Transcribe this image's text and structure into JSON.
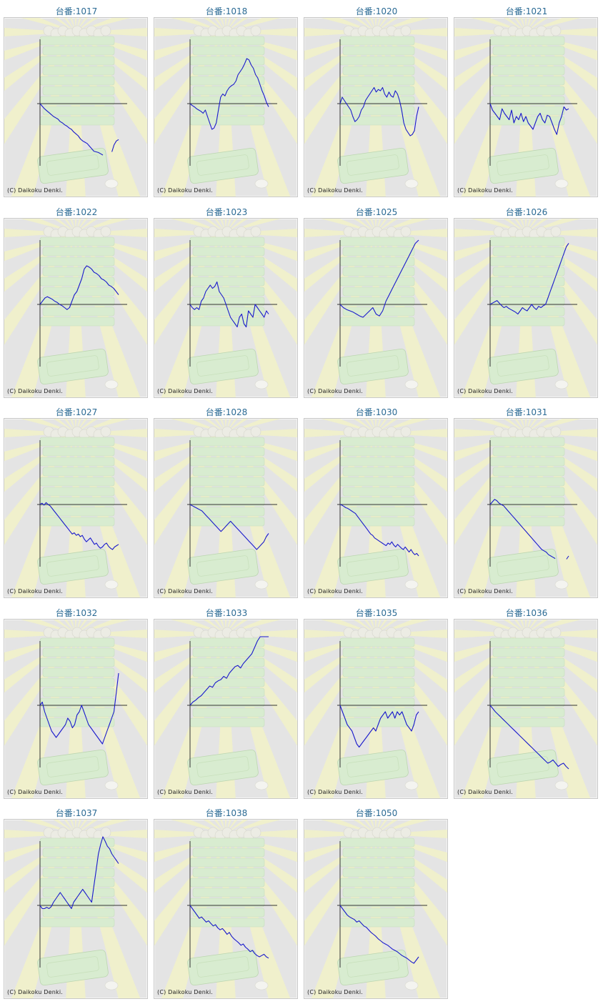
{
  "label_prefix": "台番:",
  "copyright": "(C) Daikoku Denki.",
  "colors": {
    "line": "#1a1acc",
    "axis": "#333333",
    "title": "#2a6a94",
    "background": "#e4e4e4",
    "sunburst": "#f3f3c6",
    "illustration": "#d8ecd0"
  },
  "chart_data": [
    {
      "type": "line",
      "machine": "1017",
      "y": [
        0,
        -4,
        -8,
        -11,
        -14,
        -17,
        -20,
        -22,
        -24,
        -28,
        -30,
        -33,
        -35,
        -38,
        -40,
        -44,
        -47,
        -50,
        -55,
        -58,
        -60,
        -62,
        -66,
        -70,
        -74,
        -75,
        -76,
        -78,
        -80,
        null,
        null,
        null,
        -75,
        -64,
        -58,
        -56
      ]
    },
    {
      "type": "line",
      "machine": "1018",
      "y": [
        0,
        -3,
        -5,
        -8,
        -10,
        -12,
        -15,
        -10,
        -20,
        -30,
        -40,
        -38,
        -30,
        -10,
        10,
        15,
        12,
        20,
        25,
        28,
        30,
        35,
        45,
        50,
        55,
        62,
        70,
        68,
        60,
        55,
        45,
        40,
        30,
        20,
        12,
        2,
        -5
      ]
    },
    {
      "type": "line",
      "machine": "1020",
      "y": [
        0,
        10,
        5,
        0,
        -5,
        -10,
        -20,
        -28,
        -25,
        -20,
        -10,
        -5,
        5,
        10,
        15,
        20,
        25,
        18,
        22,
        20,
        25,
        15,
        10,
        18,
        12,
        10,
        20,
        15,
        5,
        -10,
        -30,
        -40,
        -45,
        -50,
        -48,
        -42,
        -20,
        -5
      ]
    },
    {
      "type": "line",
      "machine": "1021",
      "y": [
        0,
        -10,
        -15,
        -20,
        -25,
        -8,
        -15,
        -20,
        -25,
        -10,
        -30,
        -20,
        -25,
        -15,
        -28,
        -20,
        -30,
        -35,
        -40,
        -30,
        -20,
        -15,
        -25,
        -30,
        -18,
        -20,
        -30,
        -40,
        -48,
        -30,
        -20,
        -5,
        -10,
        -8
      ]
    },
    {
      "type": "line",
      "machine": "1022",
      "y": [
        0,
        5,
        10,
        12,
        10,
        8,
        5,
        3,
        0,
        -2,
        -5,
        -8,
        -5,
        5,
        15,
        20,
        30,
        40,
        55,
        60,
        58,
        55,
        50,
        48,
        45,
        40,
        38,
        35,
        30,
        28,
        25,
        20,
        15
      ]
    },
    {
      "type": "line",
      "machine": "1023",
      "y": [
        0,
        -5,
        -8,
        -5,
        -8,
        5,
        10,
        20,
        25,
        30,
        25,
        28,
        35,
        20,
        15,
        10,
        0,
        -10,
        -20,
        -25,
        -30,
        -35,
        -20,
        -15,
        -30,
        -35,
        -10,
        -15,
        -20,
        0,
        -5,
        -10,
        -15,
        -20,
        -10,
        -15
      ]
    },
    {
      "type": "line",
      "machine": "1025",
      "y": [
        0,
        -5,
        -8,
        -10,
        -12,
        -15,
        -18,
        -20,
        -15,
        -10,
        -5,
        -15,
        -18,
        -10,
        5,
        15,
        25,
        35,
        45,
        55,
        65,
        75,
        85,
        95,
        100
      ]
    },
    {
      "type": "line",
      "machine": "1026",
      "y": [
        0,
        2,
        4,
        6,
        2,
        -2,
        -5,
        -3,
        -6,
        -8,
        -10,
        -12,
        -15,
        -10,
        -5,
        -8,
        -10,
        -5,
        0,
        -5,
        -8,
        -3,
        -5,
        -2,
        0,
        10,
        20,
        30,
        40,
        50,
        60,
        70,
        80,
        90,
        95
      ]
    },
    {
      "type": "line",
      "machine": "1027",
      "y": [
        0,
        2,
        -1,
        3,
        0,
        -2,
        -6,
        -10,
        -14,
        -18,
        -22,
        -26,
        -30,
        -34,
        -38,
        -42,
        -46,
        -44,
        -48,
        -46,
        -50,
        -48,
        -54,
        -58,
        -55,
        -52,
        -57,
        -62,
        -60,
        -65,
        -68,
        -66,
        -62,
        -60,
        -65,
        -68,
        -70,
        -66,
        -64,
        -62
      ]
    },
    {
      "type": "line",
      "machine": "1028",
      "y": [
        0,
        -2,
        -4,
        -6,
        -8,
        -10,
        -14,
        -18,
        -22,
        -26,
        -30,
        -34,
        -38,
        -42,
        -38,
        -34,
        -30,
        -26,
        -30,
        -34,
        -38,
        -42,
        -46,
        -50,
        -54,
        -58,
        -62,
        -66,
        -70,
        -66,
        -62,
        -58,
        -50,
        -45
      ]
    },
    {
      "type": "line",
      "machine": "1030",
      "y": [
        0,
        -1,
        -3,
        -5,
        -6,
        -8,
        -10,
        -12,
        -14,
        -18,
        -22,
        -26,
        -30,
        -34,
        -38,
        -42,
        -46,
        -48,
        -52,
        -54,
        -56,
        -58,
        -60,
        -62,
        -64,
        -60,
        -62,
        -58,
        -63,
        -66,
        -62,
        -65,
        -68,
        -70,
        -66,
        -70,
        -74,
        -70,
        -75,
        -78,
        -76,
        -80
      ]
    },
    {
      "type": "line",
      "machine": "1031",
      "y": [
        0,
        4,
        8,
        6,
        2,
        0,
        -2,
        -6,
        -10,
        -14,
        -18,
        -22,
        -26,
        -30,
        -34,
        -38,
        -42,
        -46,
        -50,
        -54,
        -58,
        -62,
        -66,
        -70,
        -72,
        -74,
        -78,
        -80,
        -82,
        -84,
        null,
        null,
        null,
        null,
        -85,
        -80
      ]
    },
    {
      "type": "line",
      "machine": "1032",
      "y": [
        0,
        5,
        -10,
        -20,
        -30,
        -40,
        -45,
        -50,
        -45,
        -40,
        -35,
        -30,
        -20,
        -25,
        -35,
        -30,
        -15,
        -10,
        0,
        -10,
        -20,
        -30,
        -35,
        -40,
        -45,
        -50,
        -55,
        -60,
        -50,
        -40,
        -30,
        -20,
        -10,
        20,
        50
      ]
    },
    {
      "type": "line",
      "machine": "1033",
      "y": [
        0,
        5,
        8,
        12,
        15,
        20,
        25,
        30,
        28,
        35,
        38,
        40,
        45,
        42,
        50,
        55,
        60,
        62,
        58,
        65,
        70,
        75,
        80,
        90,
        100,
        110,
        120,
        130,
        140
      ]
    },
    {
      "type": "line",
      "machine": "1035",
      "y": [
        0,
        -10,
        -20,
        -30,
        -35,
        -40,
        -50,
        -60,
        -65,
        -60,
        -55,
        -50,
        -45,
        -40,
        -35,
        -40,
        -30,
        -20,
        -15,
        -10,
        -20,
        -15,
        -10,
        -20,
        -10,
        -15,
        -10,
        -20,
        -30,
        -35,
        -40,
        -30,
        -15,
        -10
      ]
    },
    {
      "type": "line",
      "machine": "1036",
      "y": [
        0,
        -5,
        -10,
        -14,
        -18,
        -22,
        -26,
        -30,
        -34,
        -38,
        -42,
        -46,
        -50,
        -54,
        -58,
        -62,
        -66,
        -70,
        -74,
        -78,
        -82,
        -86,
        -90,
        -88,
        -85,
        -90,
        -95,
        -92,
        -90,
        -95,
        -100
      ]
    },
    {
      "type": "line",
      "machine": "1037",
      "y": [
        0,
        -5,
        -5,
        -3,
        -5,
        -2,
        5,
        10,
        15,
        20,
        15,
        10,
        5,
        0,
        -5,
        5,
        10,
        15,
        20,
        25,
        20,
        15,
        10,
        5,
        30,
        55,
        80,
        95,
        110,
        100,
        92,
        88,
        80,
        75,
        70,
        65
      ]
    },
    {
      "type": "line",
      "machine": "1038",
      "y": [
        0,
        -5,
        -10,
        -15,
        -20,
        -18,
        -22,
        -26,
        -24,
        -28,
        -32,
        -30,
        -35,
        -38,
        -36,
        -40,
        -45,
        -42,
        -48,
        -52,
        -55,
        -58,
        -62,
        -60,
        -65,
        -68,
        -72,
        -70,
        -75,
        -78,
        -80,
        -78,
        -76,
        -80,
        -82
      ]
    },
    {
      "type": "line",
      "machine": "1050",
      "y": [
        0,
        -5,
        -10,
        -15,
        -18,
        -20,
        -22,
        -26,
        -24,
        -28,
        -32,
        -34,
        -38,
        -42,
        -45,
        -48,
        -52,
        -55,
        -58,
        -60,
        -62,
        -65,
        -68,
        -70,
        -72,
        -75,
        -78,
        -80,
        -82,
        -85,
        -88,
        -90,
        -85,
        -80
      ]
    }
  ]
}
